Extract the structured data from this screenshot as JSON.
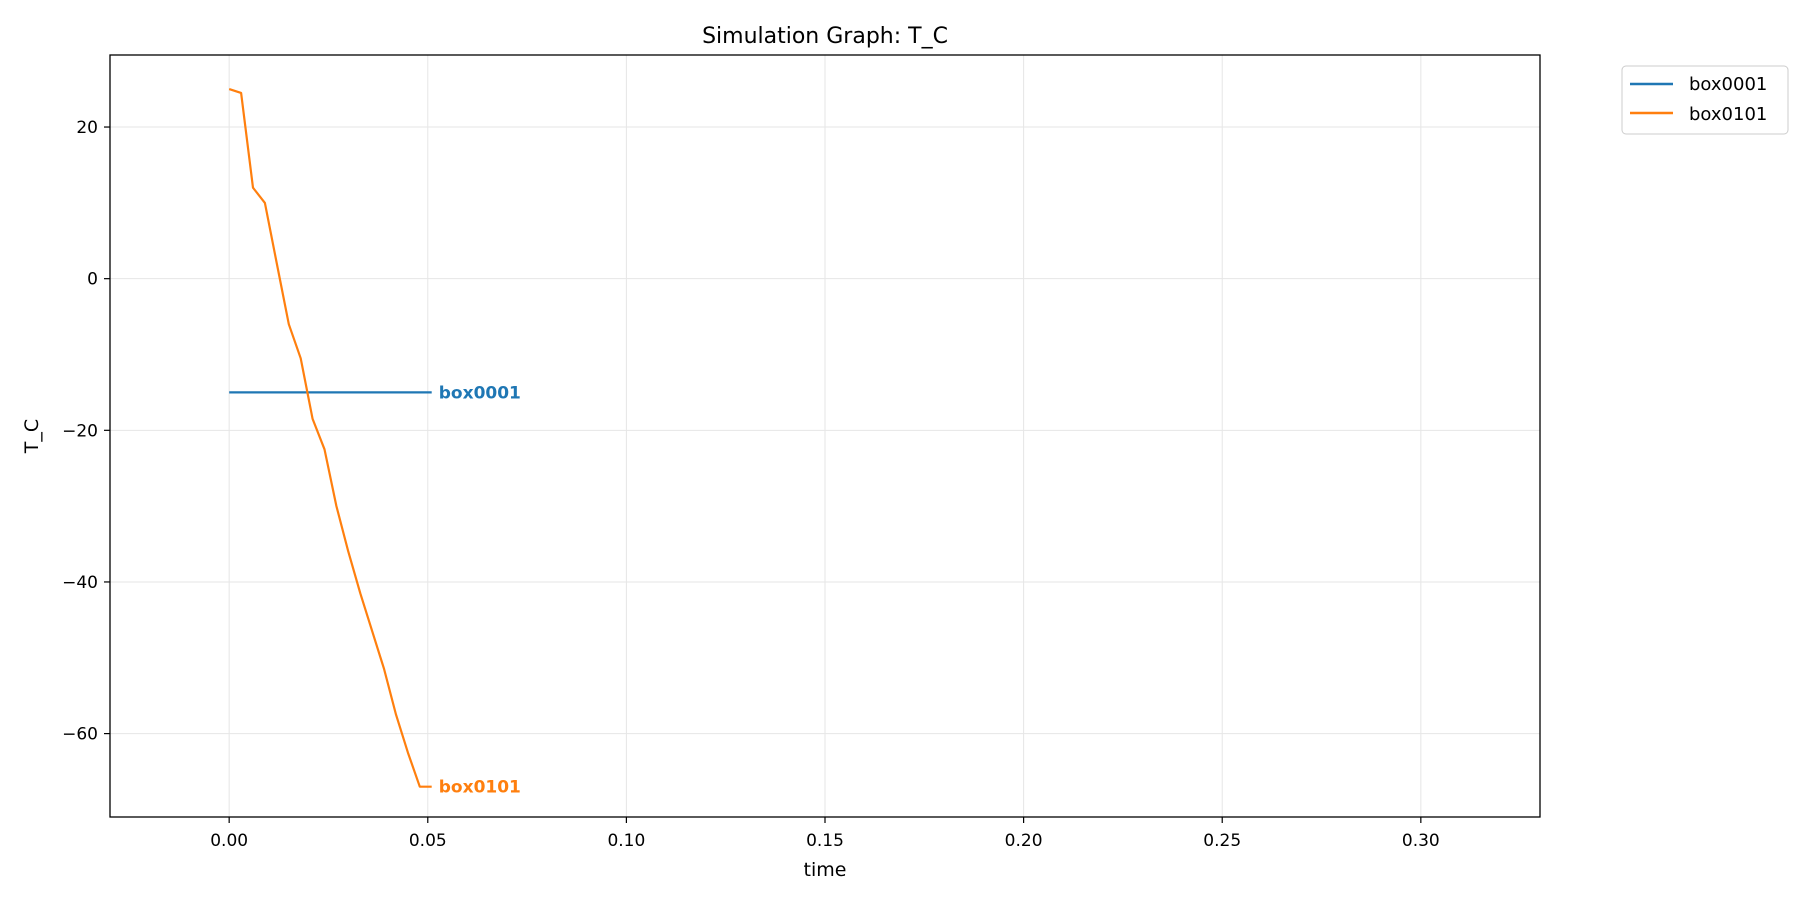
{
  "chart_data": {
    "type": "line",
    "title": "Simulation Graph: T_C",
    "xlabel": "time",
    "ylabel": "T_C",
    "xlim": [
      -0.03,
      0.33
    ],
    "ylim": [
      -71,
      29.5
    ],
    "x_ticks": [
      0.0,
      0.05,
      0.1,
      0.15,
      0.2,
      0.25,
      0.3
    ],
    "x_tick_labels": [
      "0.00",
      "0.05",
      "0.10",
      "0.15",
      "0.20",
      "0.25",
      "0.30"
    ],
    "y_ticks": [
      20,
      0,
      -20,
      -40,
      -60
    ],
    "y_tick_labels": [
      "20",
      "0",
      "−20",
      "−40",
      "−60"
    ],
    "grid": true,
    "legend_position": "outside-top-right",
    "series": [
      {
        "name": "box0001",
        "color": "#1f77b4",
        "end_label": "box0001",
        "x": [
          0.0,
          0.003,
          0.006,
          0.009,
          0.012,
          0.015,
          0.018,
          0.021,
          0.024,
          0.027,
          0.03,
          0.033,
          0.036,
          0.039,
          0.042,
          0.045,
          0.048,
          0.051
        ],
        "y": [
          -15,
          -15,
          -15,
          -15,
          -15,
          -15,
          -15,
          -15,
          -15,
          -15,
          -15,
          -15,
          -15,
          -15,
          -15,
          -15,
          -15,
          -15
        ]
      },
      {
        "name": "box0101",
        "color": "#ff7f0e",
        "end_label": "box0101",
        "x": [
          0.0,
          0.003,
          0.006,
          0.009,
          0.012,
          0.015,
          0.018,
          0.021,
          0.024,
          0.027,
          0.03,
          0.033,
          0.036,
          0.039,
          0.042,
          0.045,
          0.048,
          0.051
        ],
        "y": [
          25.0,
          24.5,
          12.0,
          10.0,
          2.0,
          -6.0,
          -10.5,
          -18.5,
          -22.5,
          -30.0,
          -36.0,
          -41.5,
          -46.5,
          -51.5,
          -57.5,
          -62.5,
          -67.0,
          -67.0
        ]
      }
    ]
  }
}
